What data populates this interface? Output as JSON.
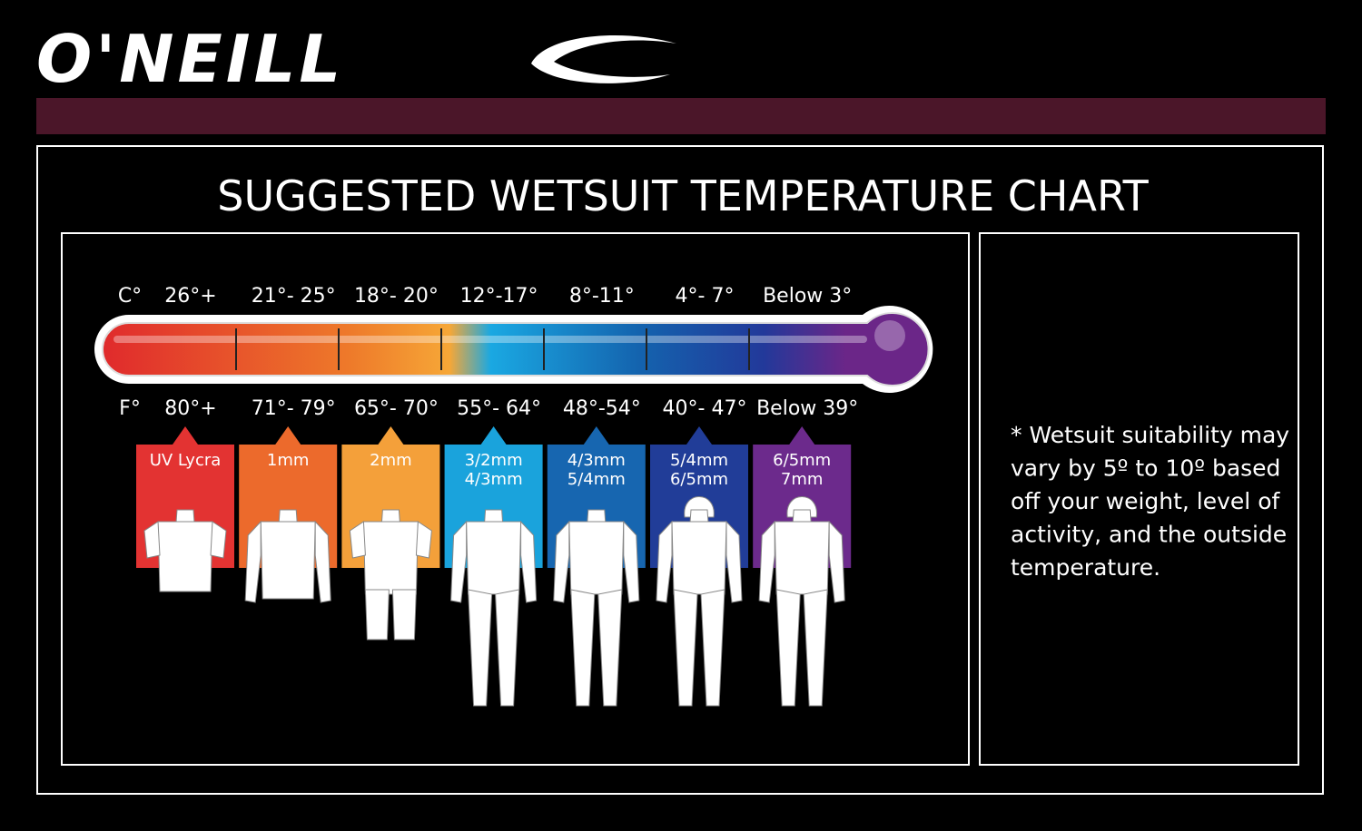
{
  "brand": "O'NEILL",
  "title": "SUGGESTED WETSUIT TEMPERATURE CHART",
  "celsius": {
    "unit": "C°",
    "ranges": [
      "26°+",
      "21°- 25°",
      "18°- 20°",
      "12°-17°",
      "8°-11°",
      "4°- 7°",
      "Below 3°"
    ]
  },
  "fahrenheit": {
    "unit": "F°",
    "ranges": [
      "80°+",
      "71°- 79°",
      "65°- 70°",
      "55°- 64°",
      "48°-54°",
      "40°- 47°",
      "Below 39°"
    ]
  },
  "suits": [
    [
      "UV Lycra"
    ],
    [
      "1mm"
    ],
    [
      "2mm"
    ],
    [
      "3/2mm",
      "4/3mm"
    ],
    [
      "4/3mm",
      "5/4mm"
    ],
    [
      "5/4mm",
      "6/5mm"
    ],
    [
      "6/5mm",
      "7mm"
    ]
  ],
  "note": [
    "* Wetsuit suitability may",
    "vary by 5º to 10º based",
    "off your weight, level of",
    "activity, and the outside",
    "temperature."
  ]
}
